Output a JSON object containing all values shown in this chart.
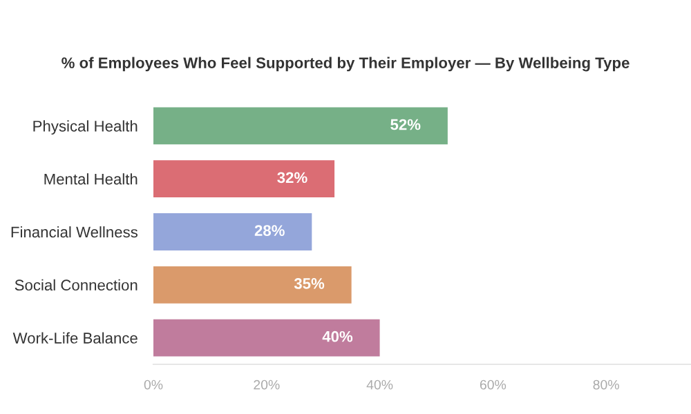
{
  "chart_data": {
    "type": "bar",
    "orientation": "horizontal",
    "title": "% of Employees Who Feel Supported by Their Employer — By Wellbeing Type",
    "categories": [
      "Physical Health",
      "Mental Health",
      "Financial Wellness",
      "Social Connection",
      "Work-Life Balance"
    ],
    "values": [
      52,
      32,
      28,
      35,
      40
    ],
    "colors": [
      "#76b087",
      "#db6d74",
      "#94a6da",
      "#da9a6b",
      "#c07c9d"
    ],
    "value_labels": [
      "52%",
      "32%",
      "28%",
      "35%",
      "40%"
    ],
    "xlim": [
      0,
      95
    ],
    "xticks": [
      {
        "value": 0,
        "label": "0%"
      },
      {
        "value": 20,
        "label": "20%"
      },
      {
        "value": 40,
        "label": "40%"
      },
      {
        "value": 60,
        "label": "60%"
      },
      {
        "value": 80,
        "label": "80%"
      }
    ],
    "grid": false,
    "legend": false
  }
}
